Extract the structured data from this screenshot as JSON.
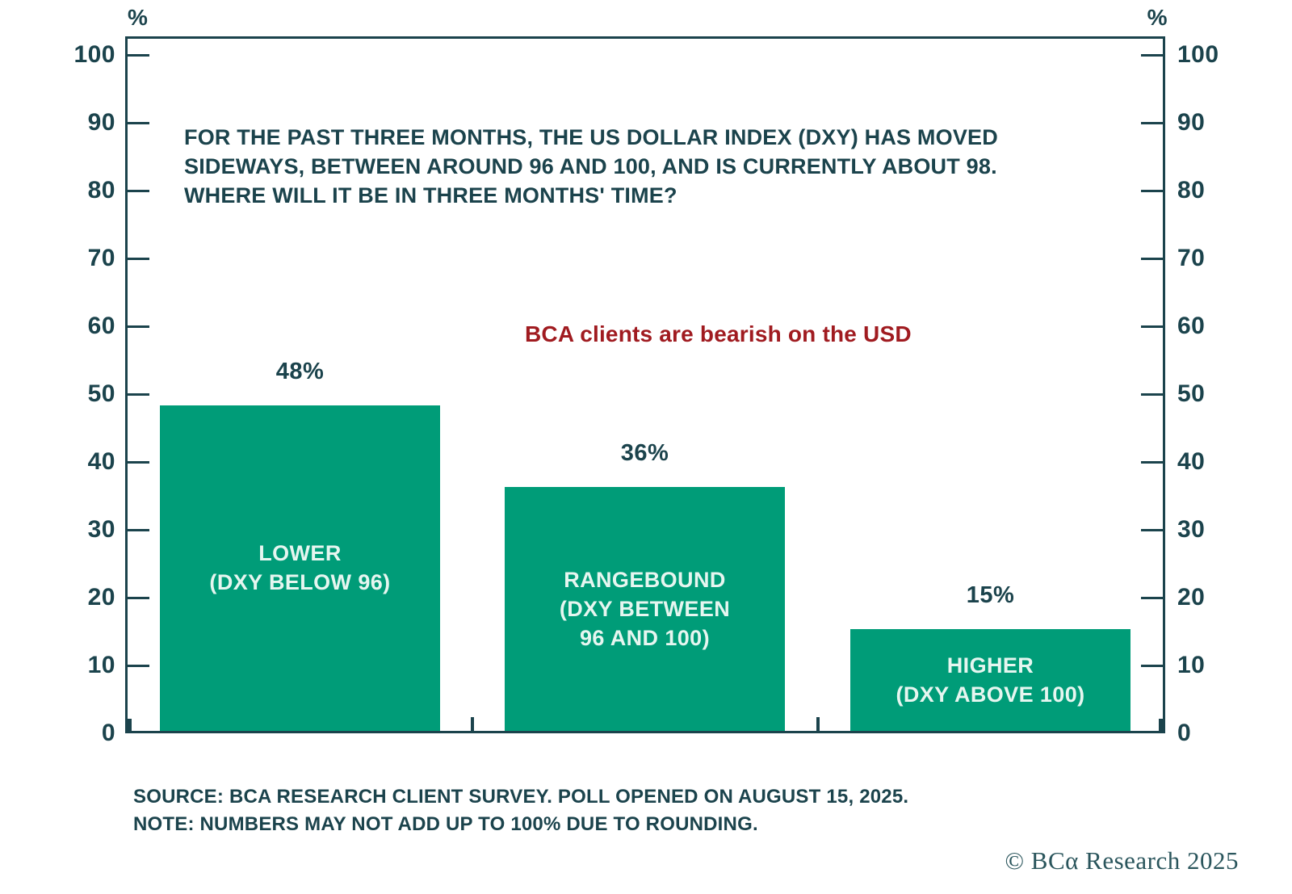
{
  "colors": {
    "text": "#1b434c",
    "axis": "#1b434c",
    "bar": "#009c78",
    "bar_label": "#e6f6f0",
    "annotation_red": "#a01b20",
    "background": "#ffffff"
  },
  "title": {
    "lines": [
      "FOR THE PAST THREE MONTHS, THE US DOLLAR INDEX (DXY) HAS MOVED",
      "SIDEWAYS, BETWEEN AROUND 96 AND 100, AND IS CURRENTLY ABOUT 98.",
      "WHERE WILL IT BE IN THREE MONTHS' TIME?"
    ]
  },
  "annotation": {
    "text": "BCA clients are bearish on the USD"
  },
  "chart_data": {
    "type": "bar",
    "title": "FOR THE PAST THREE MONTHS, THE US DOLLAR INDEX (DXY) HAS MOVED SIDEWAYS, BETWEEN AROUND 96 AND 100, AND IS CURRENTLY ABOUT 98. WHERE WILL IT BE IN THREE MONTHS' TIME?",
    "annotation": "BCA clients are bearish on the USD",
    "categories": [
      "LOWER (DXY BELOW 96)",
      "RANGEBOUND (DXY BETWEEN 96 AND 100)",
      "HIGHER (DXY ABOVE 100)"
    ],
    "values": [
      48,
      36,
      15
    ],
    "data_labels": [
      "48%",
      "36%",
      "15%"
    ],
    "bar_label_lines": [
      [
        "LOWER",
        "(DXY BELOW 96)"
      ],
      [
        "RANGEBOUND",
        "(DXY BETWEEN",
        "96 AND 100)"
      ],
      [
        "HIGHER",
        "(DXY ABOVE 100)"
      ]
    ],
    "xlabel": "",
    "ylabel": "%",
    "y_axis": {
      "unit": "%",
      "ticks": [
        0,
        10,
        20,
        30,
        40,
        50,
        60,
        70,
        80,
        90,
        100
      ],
      "sides": [
        "left",
        "right"
      ]
    },
    "ylim": [
      0,
      100
    ],
    "grid": false,
    "legend": "none",
    "bar_color": "#009c78"
  },
  "footer": {
    "source_line1": "SOURCE: BCA RESEARCH CLIENT SURVEY. POLL OPENED ON AUGUST 15, 2025.",
    "source_line2": "NOTE: NUMBERS MAY NOT ADD UP TO 100% DUE TO ROUNDING.",
    "copyright": "© BCα Research 2025"
  }
}
